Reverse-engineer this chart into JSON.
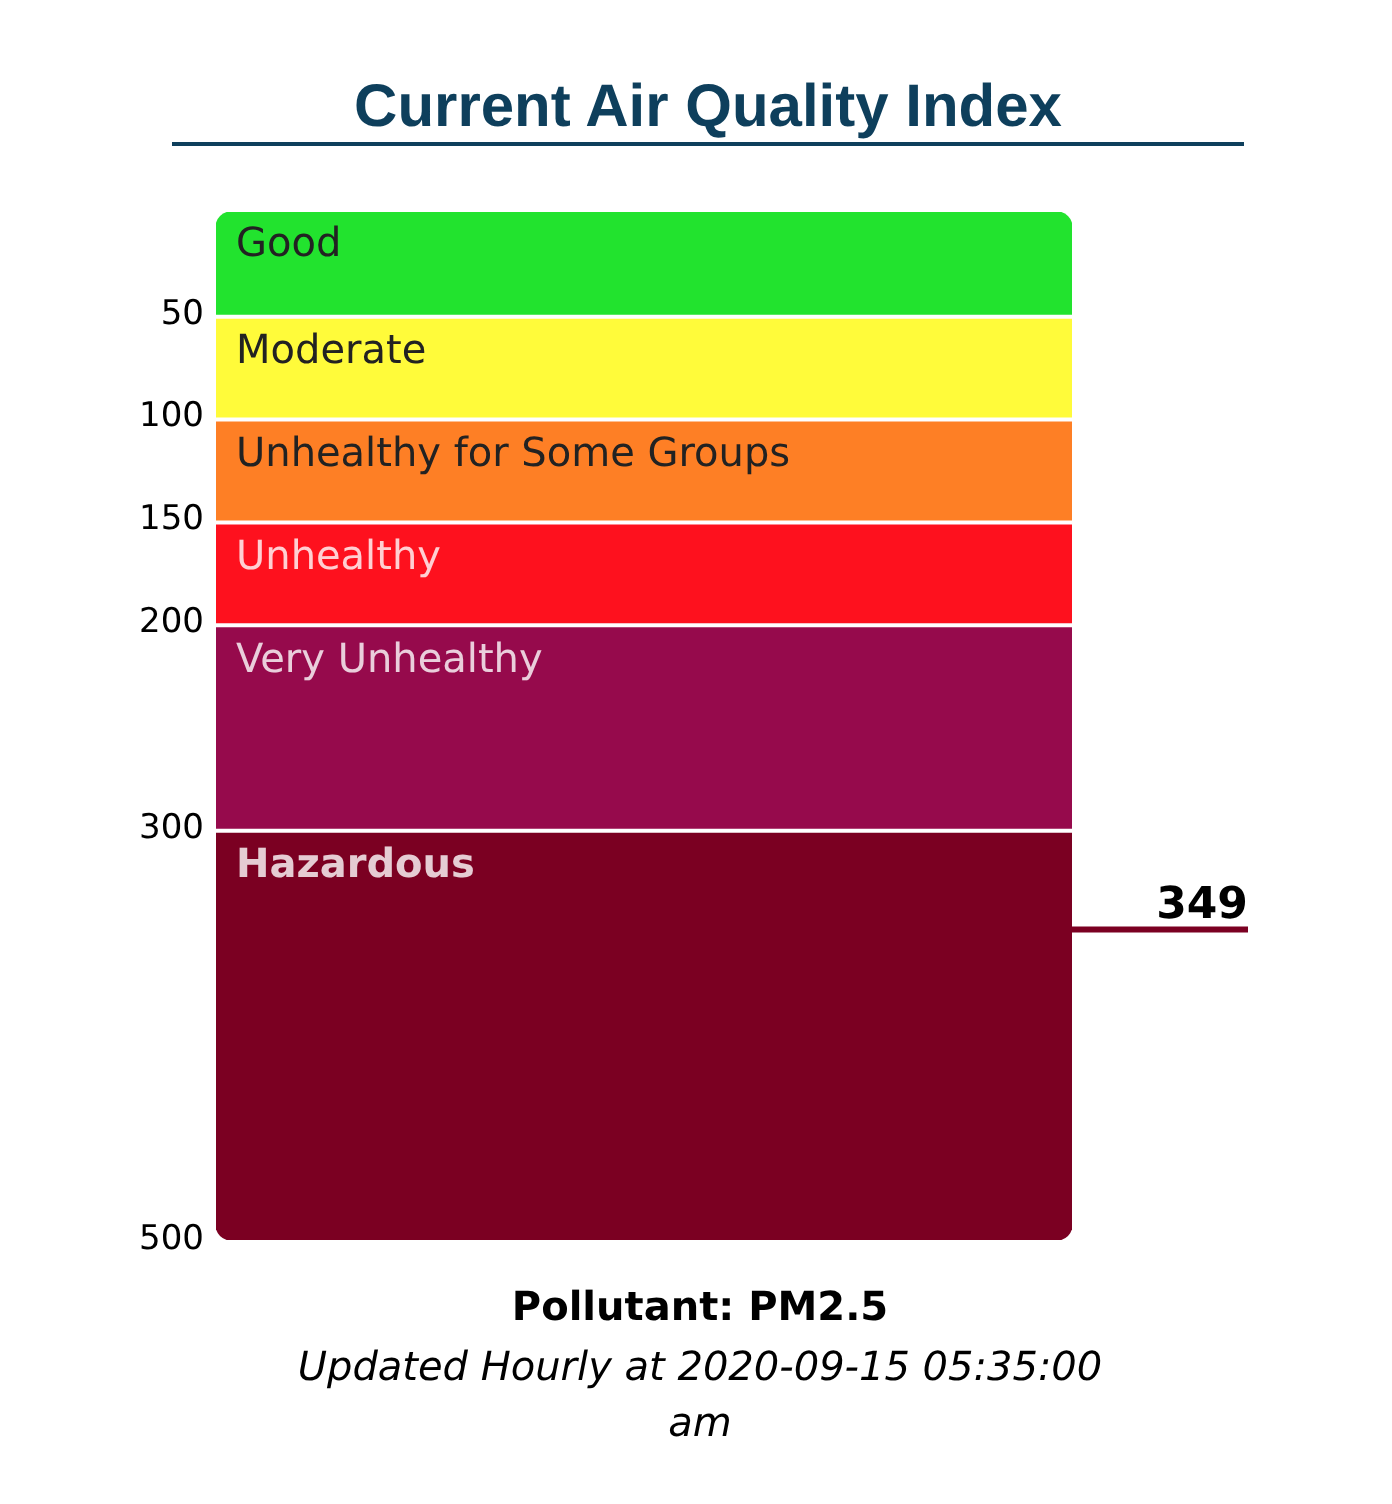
{
  "chart_data": {
    "type": "bar",
    "stacked": true,
    "title": "Current Air Quality Index",
    "categories": [
      null
    ],
    "series": [
      {
        "name": "Good",
        "color": "#22e32e",
        "values": [
          50
        ]
      },
      {
        "name": "Moderate",
        "color": "#fffb3a",
        "values": [
          50
        ]
      },
      {
        "name": "Unhealthy for Some Groups",
        "color": "#fe7f25",
        "values": [
          50
        ]
      },
      {
        "name": "Unhealthy",
        "color": "#fe111e",
        "values": [
          50
        ]
      },
      {
        "name": "Very Unhealthy",
        "color": "#960a4c",
        "values": [
          100
        ]
      },
      {
        "name": "Hazardous",
        "color": "#7b0022",
        "values": [
          200
        ]
      }
    ],
    "ylim": [
      500,
      0
    ],
    "yticks": [
      50,
      100,
      150,
      200,
      300,
      500
    ],
    "ref_lines": [
      {
        "axis": "y",
        "value": 349,
        "label": "349"
      }
    ],
    "annotations": [
      "Pollutant: PM2.5",
      "Updated Hourly at 2020-09-15 05:35:00 am"
    ]
  }
}
